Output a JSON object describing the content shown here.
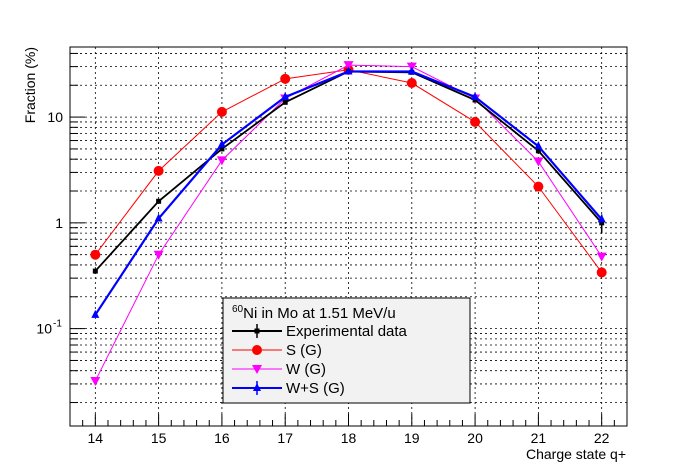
{
  "chart_data": {
    "type": "line",
    "title": "",
    "xlabel": "Charge state q+",
    "ylabel": "Fraction (%)",
    "yscale": "log",
    "xlim": [
      13.6,
      22.4
    ],
    "ylim": [
      0.012,
      46
    ],
    "x_ticks": [
      14,
      15,
      16,
      17,
      18,
      19,
      20,
      21,
      22
    ],
    "x_tick_labels": [
      "14",
      "15",
      "16",
      "17",
      "18",
      "19",
      "20",
      "21",
      "22"
    ],
    "y_tick_labels": [
      {
        "value": 0.1,
        "base": "10",
        "exp": "-1"
      },
      {
        "value": 1,
        "base": "1",
        "exp": ""
      },
      {
        "value": 10,
        "base": "10",
        "exp": ""
      }
    ],
    "grid": true,
    "legend": {
      "placement": "bottom-center",
      "title_sup": "60",
      "title": "Ni in Mo at 1.51 MeV/u"
    },
    "x": [
      14,
      15,
      16,
      17,
      18,
      19,
      20,
      21,
      22
    ],
    "series": [
      {
        "name": "Experimental data",
        "color": "#000000",
        "marker": "errorbar",
        "values": [
          0.35,
          1.6,
          5.0,
          13.8,
          27.0,
          26.5,
          14.5,
          4.8,
          1.0
        ],
        "errors": [
          0.02,
          0.05,
          0.15,
          0.4,
          0.8,
          0.8,
          0.5,
          0.3,
          0.2
        ]
      },
      {
        "name": "S (G)",
        "color": "#ff0000",
        "marker": "circle",
        "values": [
          0.5,
          3.1,
          11.2,
          23.0,
          28.0,
          21.0,
          9.0,
          2.2,
          0.34
        ]
      },
      {
        "name": "W (G)",
        "color": "#ff00ff",
        "marker": "triangle-down",
        "values": [
          0.032,
          0.5,
          3.9,
          15.0,
          31.0,
          30.0,
          15.0,
          3.8,
          0.48
        ]
      },
      {
        "name": "W+S (G)",
        "color": "#0000ff",
        "marker": "triangle-up",
        "values": [
          0.135,
          1.1,
          5.5,
          15.5,
          27.0,
          27.0,
          15.5,
          5.3,
          1.08
        ]
      }
    ]
  }
}
